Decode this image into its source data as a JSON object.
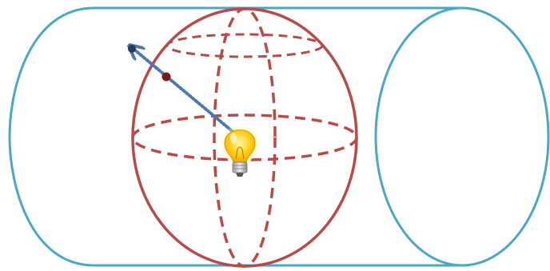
{
  "diagram": {
    "subject": "sphere-inside-cylinder",
    "colors": {
      "cylinder": "#4aa8c4",
      "sphere": "#b84a48",
      "ray": "#4a78b0",
      "cylinder_point": "#2a3a58",
      "sphere_point": "#7a1a1a",
      "bulb_glass": "#ffd21a",
      "bulb_base": "#c8c8c8",
      "background": "#ffffff"
    },
    "icons": [
      "light-bulb-icon"
    ],
    "elements": [
      {
        "name": "cylinder",
        "style": "solid"
      },
      {
        "name": "sphere",
        "style": "solid-outline-dashed-meridians"
      },
      {
        "name": "ray",
        "style": "dotted-arrow"
      },
      {
        "name": "sphere-intersection-point",
        "style": "dot"
      },
      {
        "name": "cylinder-intersection-point",
        "style": "dot"
      }
    ]
  }
}
